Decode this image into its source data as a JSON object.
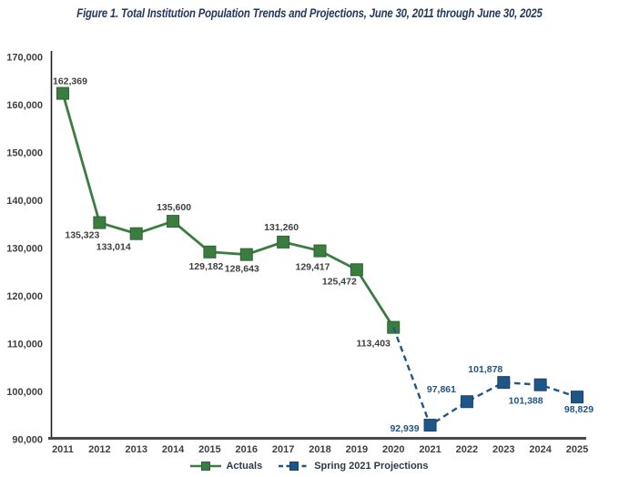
{
  "title": "Figure 1. Total Institution Population Trends and Projections, June 30, 2011 through June 30, 2025",
  "colors": {
    "title": "#24395B",
    "actuals_line": "#3B7C40",
    "actuals_marker_edge": "#2E6234",
    "actuals_label": "#3F3F3F",
    "projections_line": "#1F5688",
    "projections_marker_edge": "#16436B",
    "projections_label": "#1F5487",
    "y_axis_line": "#1F1F1F",
    "x_axis_line": "#4A4A4A",
    "tick_label": "#3F3F3F",
    "legend_text": "#2B3A4A",
    "background": "#FFFFFF"
  },
  "chart_data": {
    "type": "line",
    "title": "Figure 1. Total Institution Population Trends and Projections, June 30, 2011 through June 30, 2025",
    "xlabel": "",
    "ylabel": "",
    "grid": false,
    "legend_position": "bottom-center",
    "ylim": [
      90000,
      170000
    ],
    "ytick_step": 10000,
    "ytick_labels": [
      "170,000",
      "160,000",
      "150,000",
      "140,000",
      "130,000",
      "120,000",
      "110,000",
      "100,000",
      "90,000"
    ],
    "x_categories": [
      "2011",
      "2012",
      "2013",
      "2014",
      "2015",
      "2016",
      "2017",
      "2018",
      "2019",
      "2020",
      "2021",
      "2022",
      "2023",
      "2024",
      "2025"
    ],
    "series": [
      {
        "name": "Actuals",
        "line_style": "solid",
        "color_key": "actuals_line",
        "marker_edge_key": "actuals_marker_edge",
        "label_color_key": "actuals_label",
        "points": [
          {
            "year": "2011",
            "value": 162369,
            "label": "162,369",
            "anchor": "start",
            "dx": -11,
            "dy": -10
          },
          {
            "year": "2012",
            "value": 135323,
            "label": "135,323",
            "anchor": "end",
            "dx": 0,
            "dy": 17
          },
          {
            "year": "2013",
            "value": 133014,
            "label": "133,014",
            "anchor": "end",
            "dx": -6,
            "dy": 18
          },
          {
            "year": "2014",
            "value": 135600,
            "label": "135,600",
            "anchor": "middle",
            "dx": 1,
            "dy": -12
          },
          {
            "year": "2015",
            "value": 129182,
            "label": "129,182",
            "anchor": "middle",
            "dx": -4,
            "dy": 19
          },
          {
            "year": "2016",
            "value": 128643,
            "label": "128,643",
            "anchor": "middle",
            "dx": -5,
            "dy": 19
          },
          {
            "year": "2017",
            "value": 131260,
            "label": "131,260",
            "anchor": "middle",
            "dx": -2,
            "dy": -13
          },
          {
            "year": "2018",
            "value": 129417,
            "label": "129,417",
            "anchor": "middle",
            "dx": -8,
            "dy": 21
          },
          {
            "year": "2019",
            "value": 125472,
            "label": "125,472",
            "anchor": "middle",
            "dx": -19,
            "dy": 16
          },
          {
            "year": "2020",
            "value": 113403,
            "label": "113,403",
            "anchor": "middle",
            "dx": -22,
            "dy": 21
          }
        ]
      },
      {
        "name": "Spring 2021 Projections",
        "line_style": "dashed",
        "color_key": "projections_line",
        "marker_edge_key": "projections_marker_edge",
        "label_color_key": "projections_label",
        "points": [
          {
            "year": "2020",
            "value": 113403,
            "marker": false
          },
          {
            "year": "2021",
            "value": 92939,
            "label": "92,939",
            "anchor": "end",
            "dx": -12,
            "dy": 7
          },
          {
            "year": "2022",
            "value": 97861,
            "label": "97,861",
            "anchor": "middle",
            "dx": -28,
            "dy": -10
          },
          {
            "year": "2023",
            "value": 101878,
            "label": "101,878",
            "anchor": "middle",
            "dx": -20,
            "dy": -11
          },
          {
            "year": "2024",
            "value": 101388,
            "label": "101,388",
            "anchor": "middle",
            "dx": -16,
            "dy": 21
          },
          {
            "year": "2025",
            "value": 98829,
            "label": "98,829",
            "anchor": "middle",
            "dx": 2,
            "dy": 17
          }
        ]
      }
    ]
  }
}
